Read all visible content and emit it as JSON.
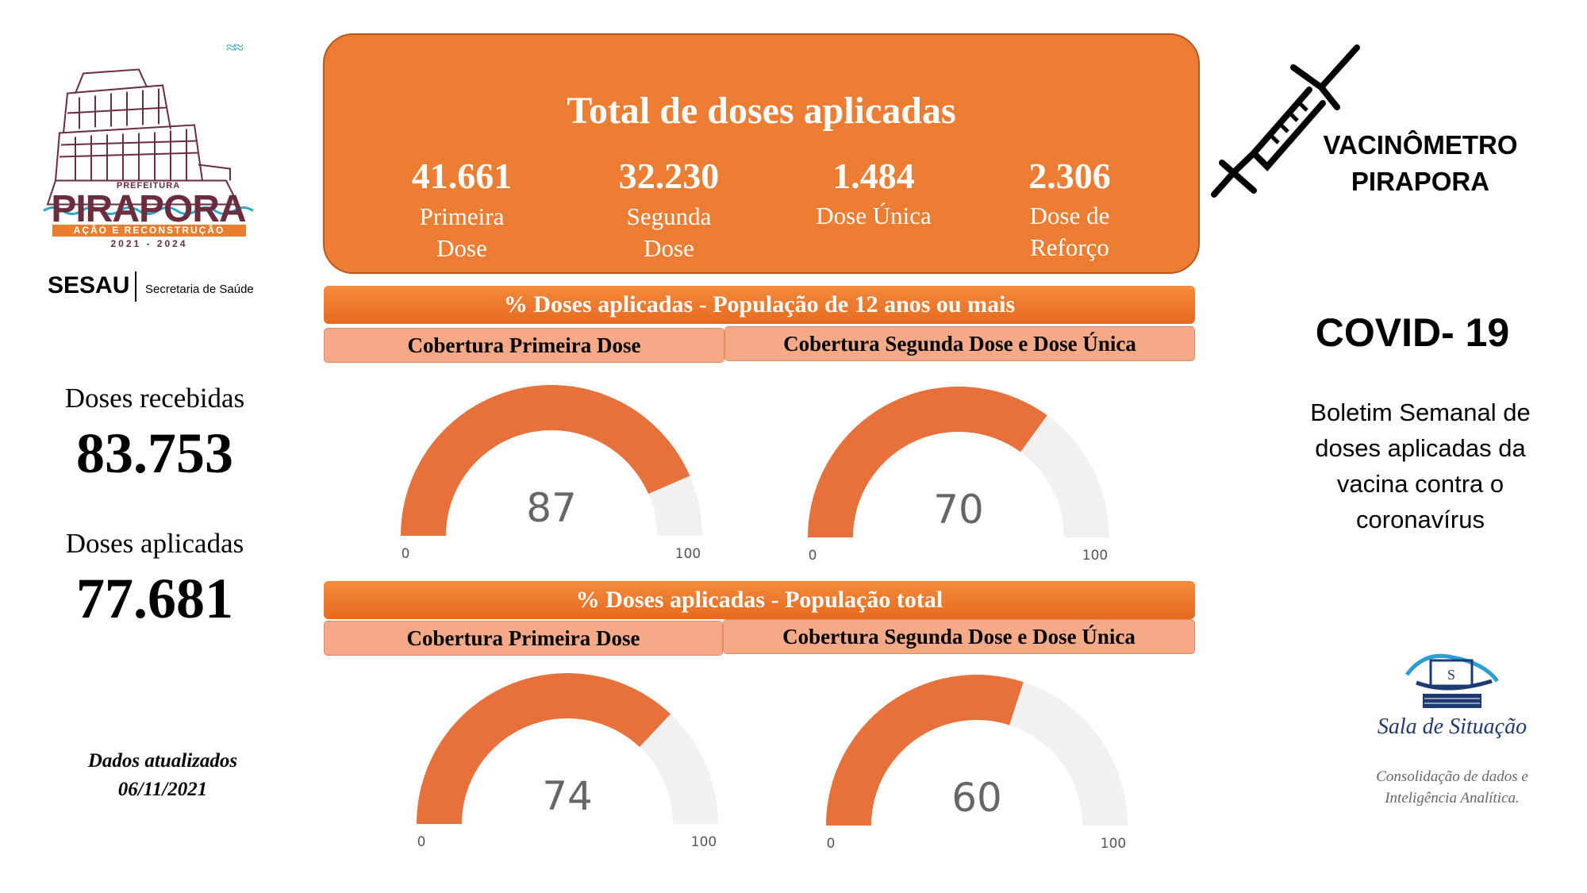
{
  "logo": {
    "prefeitura": "PREFEITURA",
    "name": "PIRAPORA",
    "tagline": "AÇÃO E RECONSTRUÇÃO",
    "years": "2021 - 2024"
  },
  "department": {
    "acronym": "SESAU",
    "name": "Secretaria de Saúde"
  },
  "received": {
    "label": "Doses recebidas",
    "value": "83.753"
  },
  "applied": {
    "label": "Doses aplicadas",
    "value": "77.681"
  },
  "update": {
    "line1": "Dados atualizados",
    "line2": "06/11/2021"
  },
  "totals": {
    "title": "Total de doses aplicadas",
    "items": [
      {
        "value": "41.661",
        "label1": "Primeira",
        "label2": "Dose"
      },
      {
        "value": "32.230",
        "label1": "Segunda",
        "label2": "Dose"
      },
      {
        "value": "1.484",
        "label1": "Dose Única",
        "label2": ""
      },
      {
        "value": "2.306",
        "label1": "Dose de",
        "label2": "Reforço"
      }
    ]
  },
  "sections": [
    {
      "title": "% Doses aplicadas  - População de 12 anos ou mais",
      "left_label": "Cobertura Primeira Dose",
      "right_label": "Cobertura Segunda Dose e Dose Única",
      "gauges": [
        {
          "value": 87,
          "min": "0",
          "max": "100"
        },
        {
          "value": 70,
          "min": "0",
          "max": "100"
        }
      ]
    },
    {
      "title": "% Doses aplicadas - População total",
      "left_label": "Cobertura Primeira Dose",
      "right_label": "Cobertura Segunda Dose e Dose Única",
      "gauges": [
        {
          "value": 74,
          "min": "0",
          "max": "100"
        },
        {
          "value": 60,
          "min": "0",
          "max": "100"
        }
      ]
    }
  ],
  "brand": {
    "line1": "VACINÔMETRO",
    "line2": "PIRAPORA"
  },
  "covid": "COVID- 19",
  "bulletin": [
    "Boletim Semanal de",
    "doses aplicadas da",
    "vacina contra o",
    "coronavírus"
  ],
  "sala": {
    "title": "Sala de Situação",
    "desc1": "Consolidação de dados e",
    "desc2": "Inteligência Analítica."
  },
  "colors": {
    "accent": "#ec7d33",
    "gauge_fill": "#e8703a",
    "gauge_track": "#f1f1f1",
    "sub_bar": "#f5a986"
  }
}
